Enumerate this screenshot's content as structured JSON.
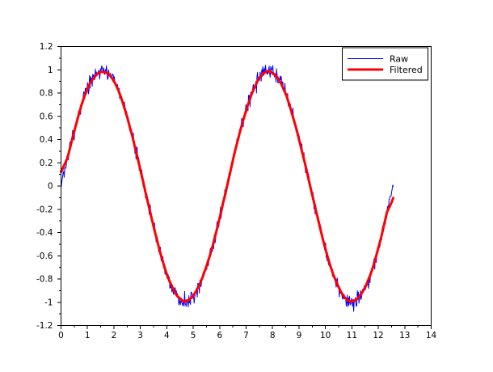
{
  "window": {
    "background": "#ffffff",
    "plot_background": "#ffffff"
  },
  "chart_data": {
    "type": "line",
    "title": "",
    "xlabel": "",
    "ylabel": "",
    "xlim": [
      0,
      14
    ],
    "ylim": [
      -1.2,
      1.2
    ],
    "grid": false,
    "axis_color": "#000000",
    "tick_label_color": "#000000",
    "x_ticks": {
      "major_values": [
        0,
        1,
        2,
        3,
        4,
        5,
        6,
        7,
        8,
        9,
        10,
        11,
        12,
        13,
        14
      ],
      "major_labels": [
        "0",
        "1",
        "2",
        "3",
        "4",
        "5",
        "6",
        "7",
        "8",
        "9",
        "10",
        "11",
        "12",
        "13",
        "14"
      ],
      "minor_step": 0.5
    },
    "y_ticks": {
      "major_values": [
        -1.2,
        -1,
        -0.8,
        -0.6,
        -0.4,
        -0.2,
        0,
        0.2,
        0.4,
        0.6,
        0.8,
        1,
        1.2
      ],
      "major_labels": [
        "-1.2",
        "-1",
        "-0.8",
        "-0.6",
        "-0.4",
        "-0.2",
        "0",
        "0.2",
        "0.4",
        "0.6",
        "0.8",
        "1",
        "1.2"
      ],
      "minor_step": 0.1
    },
    "legend": {
      "position": "upper-right",
      "border_color": "#000000",
      "background": "#ffffff",
      "entries": [
        {
          "label": "Raw",
          "color": "#0000ff",
          "line_width": 1
        },
        {
          "label": "Filtered",
          "color": "#ff0000",
          "line_width": 3
        }
      ]
    },
    "series": [
      {
        "name": "Raw",
        "color": "#0000ff",
        "line_width": 1,
        "model": "sine_with_noise",
        "amplitude": 1,
        "angular_frequency": 1,
        "phase": 0,
        "x_start": 0,
        "x_end": 12.566,
        "n_points": 630,
        "noise_std": 0.03,
        "noise_seed": 20
      },
      {
        "name": "Filtered",
        "color": "#ff0000",
        "line_width": 3,
        "model": "moving_average_of_raw",
        "window": 25
      }
    ],
    "key_points": {
      "start": {
        "x": 0,
        "y": 0
      },
      "peaks": [
        {
          "x": 1.571,
          "y": 1.0
        },
        {
          "x": 7.854,
          "y": 1.0
        }
      ],
      "troughs": [
        {
          "x": 4.712,
          "y": -1.0
        },
        {
          "x": 10.996,
          "y": -1.0
        }
      ],
      "end": {
        "x": 12.566,
        "y": 0
      }
    }
  }
}
